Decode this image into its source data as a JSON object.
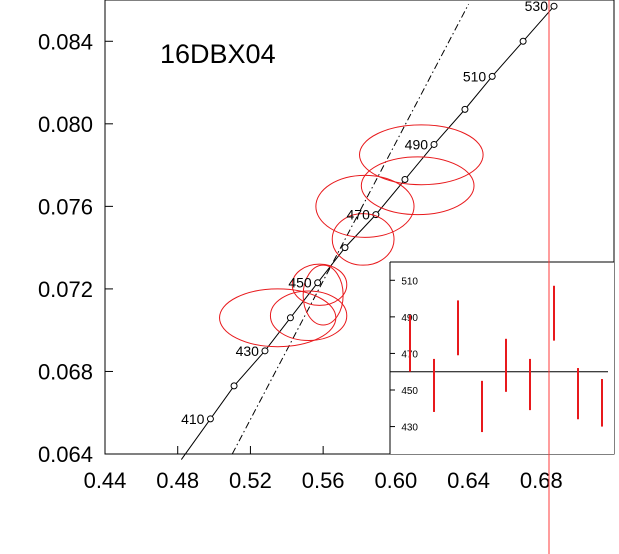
{
  "chart_data": {
    "type": "scatter",
    "title": "16DBX04",
    "xlim": [
      0.44,
      0.72
    ],
    "ylim": [
      0.064,
      0.086
    ],
    "x_ticks": [
      0.44,
      0.48,
      0.52,
      0.56,
      0.6,
      0.64,
      0.68
    ],
    "x_tick_labels": [
      "0.44",
      "0.48",
      "0.52",
      "0.56",
      "0.60",
      "0.64",
      "0.68"
    ],
    "y_ticks": [
      0.064,
      0.068,
      0.072,
      0.076,
      0.08,
      0.084
    ],
    "y_tick_labels": [
      "0.064",
      "0.068",
      "0.072",
      "0.076",
      "0.080",
      "0.084"
    ],
    "concordia_points": [
      {
        "x": 0.498,
        "y": 0.0657,
        "label": "410"
      },
      {
        "x": 0.511,
        "y": 0.0673,
        "label": ""
      },
      {
        "x": 0.528,
        "y": 0.069,
        "label": "430"
      },
      {
        "x": 0.542,
        "y": 0.0706,
        "label": ""
      },
      {
        "x": 0.557,
        "y": 0.0723,
        "label": "450"
      },
      {
        "x": 0.572,
        "y": 0.074,
        "label": ""
      },
      {
        "x": 0.589,
        "y": 0.0756,
        "label": "470"
      },
      {
        "x": 0.605,
        "y": 0.0773,
        "label": ""
      },
      {
        "x": 0.621,
        "y": 0.079,
        "label": "490"
      },
      {
        "x": 0.638,
        "y": 0.0807,
        "label": ""
      },
      {
        "x": 0.653,
        "y": 0.0823,
        "label": "510"
      },
      {
        "x": 0.67,
        "y": 0.084,
        "label": ""
      },
      {
        "x": 0.687,
        "y": 0.0857,
        "label": "530"
      }
    ],
    "reference_line": [
      {
        "x": 0.51,
        "y": 0.064
      },
      {
        "x": 0.64,
        "y": 0.0858
      }
    ],
    "error_ellipses": [
      {
        "cx": 0.614,
        "cy": 0.0785,
        "rx": 0.034,
        "ry": 0.00145
      },
      {
        "cx": 0.612,
        "cy": 0.077,
        "rx": 0.031,
        "ry": 0.0014
      },
      {
        "cx": 0.583,
        "cy": 0.076,
        "rx": 0.027,
        "ry": 0.0015
      },
      {
        "cx": 0.582,
        "cy": 0.0744,
        "rx": 0.017,
        "ry": 0.00125
      },
      {
        "cx": 0.558,
        "cy": 0.0722,
        "rx": 0.015,
        "ry": 0.001
      },
      {
        "cx": 0.56,
        "cy": 0.0717,
        "rx": 0.011,
        "ry": 0.00145
      },
      {
        "cx": 0.552,
        "cy": 0.0707,
        "rx": 0.021,
        "ry": 0.0012
      },
      {
        "cx": 0.535,
        "cy": 0.0706,
        "rx": 0.032,
        "ry": 0.0014
      }
    ],
    "inset": {
      "type": "bar",
      "ylim": [
        415,
        520
      ],
      "y_ticks": [
        430,
        450,
        470,
        490,
        510
      ],
      "y_tick_labels": [
        "430",
        "450",
        "470",
        "490",
        "510"
      ],
      "mean": 460,
      "bars": [
        {
          "low": 460,
          "high": 491
        },
        {
          "low": 438,
          "high": 467
        },
        {
          "low": 469,
          "high": 499
        },
        {
          "low": 427,
          "high": 455
        },
        {
          "low": 449,
          "high": 478
        },
        {
          "low": 439,
          "high": 467
        },
        {
          "low": 477,
          "high": 507
        },
        {
          "low": 434,
          "high": 462
        },
        {
          "low": 430,
          "high": 456
        }
      ]
    }
  }
}
